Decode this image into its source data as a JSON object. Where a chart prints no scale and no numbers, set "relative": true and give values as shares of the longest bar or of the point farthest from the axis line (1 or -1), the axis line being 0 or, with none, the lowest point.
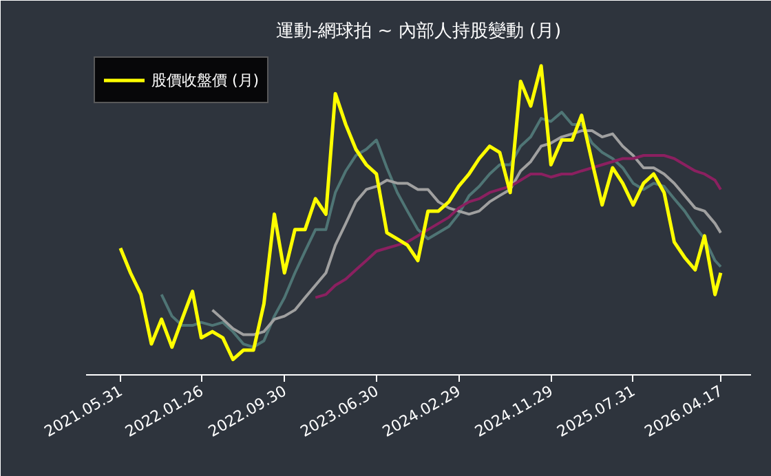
{
  "chart_data": {
    "type": "line",
    "title": "運動-網球拍 ~ 內部人持股變動 (月)",
    "relative": true,
    "legend": "top left",
    "x": [
      "2021-05-31",
      "2021-06-30",
      "2021-07-31",
      "2021-08-31",
      "2021-09-30",
      "2021-10-31",
      "2021-11-30",
      "2021-12-31",
      "2022-01-26",
      "2022-02-28",
      "2022-03-31",
      "2022-04-30",
      "2022-05-31",
      "2022-06-30",
      "2022-07-31",
      "2022-08-31",
      "2022-09-30",
      "2022-10-31",
      "2022-11-30",
      "2022-12-31",
      "2023-01-31",
      "2023-02-28",
      "2023-03-31",
      "2023-04-30",
      "2023-05-31",
      "2023-06-30",
      "2023-07-31",
      "2023-08-31",
      "2023-09-30",
      "2023-10-31",
      "2023-11-30",
      "2023-12-31",
      "2024-01-31",
      "2024-02-29",
      "2024-03-31",
      "2024-04-30",
      "2024-05-31",
      "2024-06-30",
      "2024-07-31",
      "2024-08-31",
      "2024-09-30",
      "2024-10-31",
      "2024-11-29",
      "2024-12-31",
      "2025-01-31",
      "2025-02-28",
      "2025-03-31",
      "2025-04-30",
      "2025-05-31",
      "2025-06-30",
      "2025-07-31",
      "2025-08-31",
      "2025-09-30",
      "2025-10-31",
      "2025-11-30",
      "2025-12-31",
      "2026-01-31",
      "2026-02-28",
      "2026-03-31",
      "2026-04-17"
    ],
    "xlim": [
      "2021-02-18",
      "2026-07-16"
    ],
    "xticks": [
      {
        "value": "2021-05-31",
        "label": "2021.05.31"
      },
      {
        "value": "2022-01-26",
        "label": "2022.01.26"
      },
      {
        "value": "2022-09-30",
        "label": "2022.09.30"
      },
      {
        "value": "2023-06-30",
        "label": "2023.06.30"
      },
      {
        "value": "2024-02-29",
        "label": "2024.02.29"
      },
      {
        "value": "2024-11-29",
        "label": "2024.11.29"
      },
      {
        "value": "2025-07-31",
        "label": "2025.07.31"
      },
      {
        "value": "2026-04-17",
        "label": "2026.04.17"
      }
    ],
    "series": [
      {
        "color": "#4f7575",
        "values": [
          null,
          null,
          null,
          null,
          0.26,
          0.19,
          0.16,
          0.16,
          0.17,
          0.16,
          0.17,
          0.14,
          0.1,
          0.09,
          0.11,
          0.19,
          0.25,
          0.33,
          0.4,
          0.47,
          0.47,
          0.59,
          0.66,
          0.71,
          0.73,
          0.76,
          0.67,
          0.59,
          0.53,
          0.47,
          0.44,
          0.46,
          0.48,
          0.52,
          0.58,
          0.61,
          0.65,
          0.68,
          0.68,
          0.74,
          0.77,
          0.83,
          0.82,
          0.85,
          0.81,
          0.81,
          0.75,
          0.72,
          0.7,
          0.67,
          0.62,
          0.6,
          0.62,
          0.61,
          0.57,
          0.53,
          0.48,
          0.44,
          0.37,
          0.35
        ]
      },
      {
        "color": "#a0a0a0",
        "values": [
          null,
          null,
          null,
          null,
          null,
          null,
          null,
          null,
          null,
          0.21,
          0.18,
          0.15,
          0.13,
          0.13,
          0.14,
          0.18,
          0.19,
          0.21,
          0.25,
          0.29,
          0.33,
          0.42,
          0.49,
          0.56,
          0.6,
          0.61,
          0.63,
          0.62,
          0.62,
          0.6,
          0.6,
          0.56,
          0.54,
          0.53,
          0.52,
          0.53,
          0.56,
          0.58,
          0.6,
          0.66,
          0.69,
          0.74,
          0.75,
          0.77,
          0.78,
          0.79,
          0.79,
          0.77,
          0.78,
          0.74,
          0.71,
          0.67,
          0.67,
          0.65,
          0.62,
          0.58,
          0.54,
          0.53,
          0.49,
          0.46
        ]
      },
      {
        "color": "#8b2060",
        "values": [
          null,
          null,
          null,
          null,
          null,
          null,
          null,
          null,
          null,
          null,
          null,
          null,
          null,
          null,
          null,
          null,
          null,
          null,
          null,
          0.25,
          0.26,
          0.29,
          0.31,
          0.34,
          0.37,
          0.4,
          0.41,
          0.42,
          0.43,
          0.45,
          0.47,
          0.49,
          0.51,
          0.54,
          0.56,
          0.57,
          0.59,
          0.6,
          0.61,
          0.63,
          0.65,
          0.65,
          0.64,
          0.65,
          0.65,
          0.66,
          0.67,
          0.68,
          0.69,
          0.7,
          0.7,
          0.71,
          0.71,
          0.71,
          0.7,
          0.68,
          0.66,
          0.65,
          0.63,
          0.6
        ]
      },
      {
        "name": "股價收盤價 (月)",
        "color": "#ffff00",
        "values": [
          0.41,
          0.33,
          0.26,
          0.1,
          0.18,
          0.09,
          0.18,
          0.27,
          0.12,
          0.14,
          0.12,
          0.05,
          0.08,
          0.08,
          0.23,
          0.52,
          0.33,
          0.47,
          0.47,
          0.57,
          0.52,
          0.91,
          0.81,
          0.73,
          0.68,
          0.65,
          0.46,
          0.44,
          0.42,
          0.37,
          0.53,
          0.53,
          0.56,
          0.61,
          0.65,
          0.7,
          0.74,
          0.72,
          0.59,
          0.95,
          0.87,
          1.0,
          0.68,
          0.76,
          0.76,
          0.84,
          0.69,
          0.55,
          0.67,
          0.62,
          0.55,
          0.62,
          0.65,
          0.59,
          0.43,
          0.38,
          0.34,
          0.45,
          0.26,
          0.33
        ]
      }
    ]
  }
}
